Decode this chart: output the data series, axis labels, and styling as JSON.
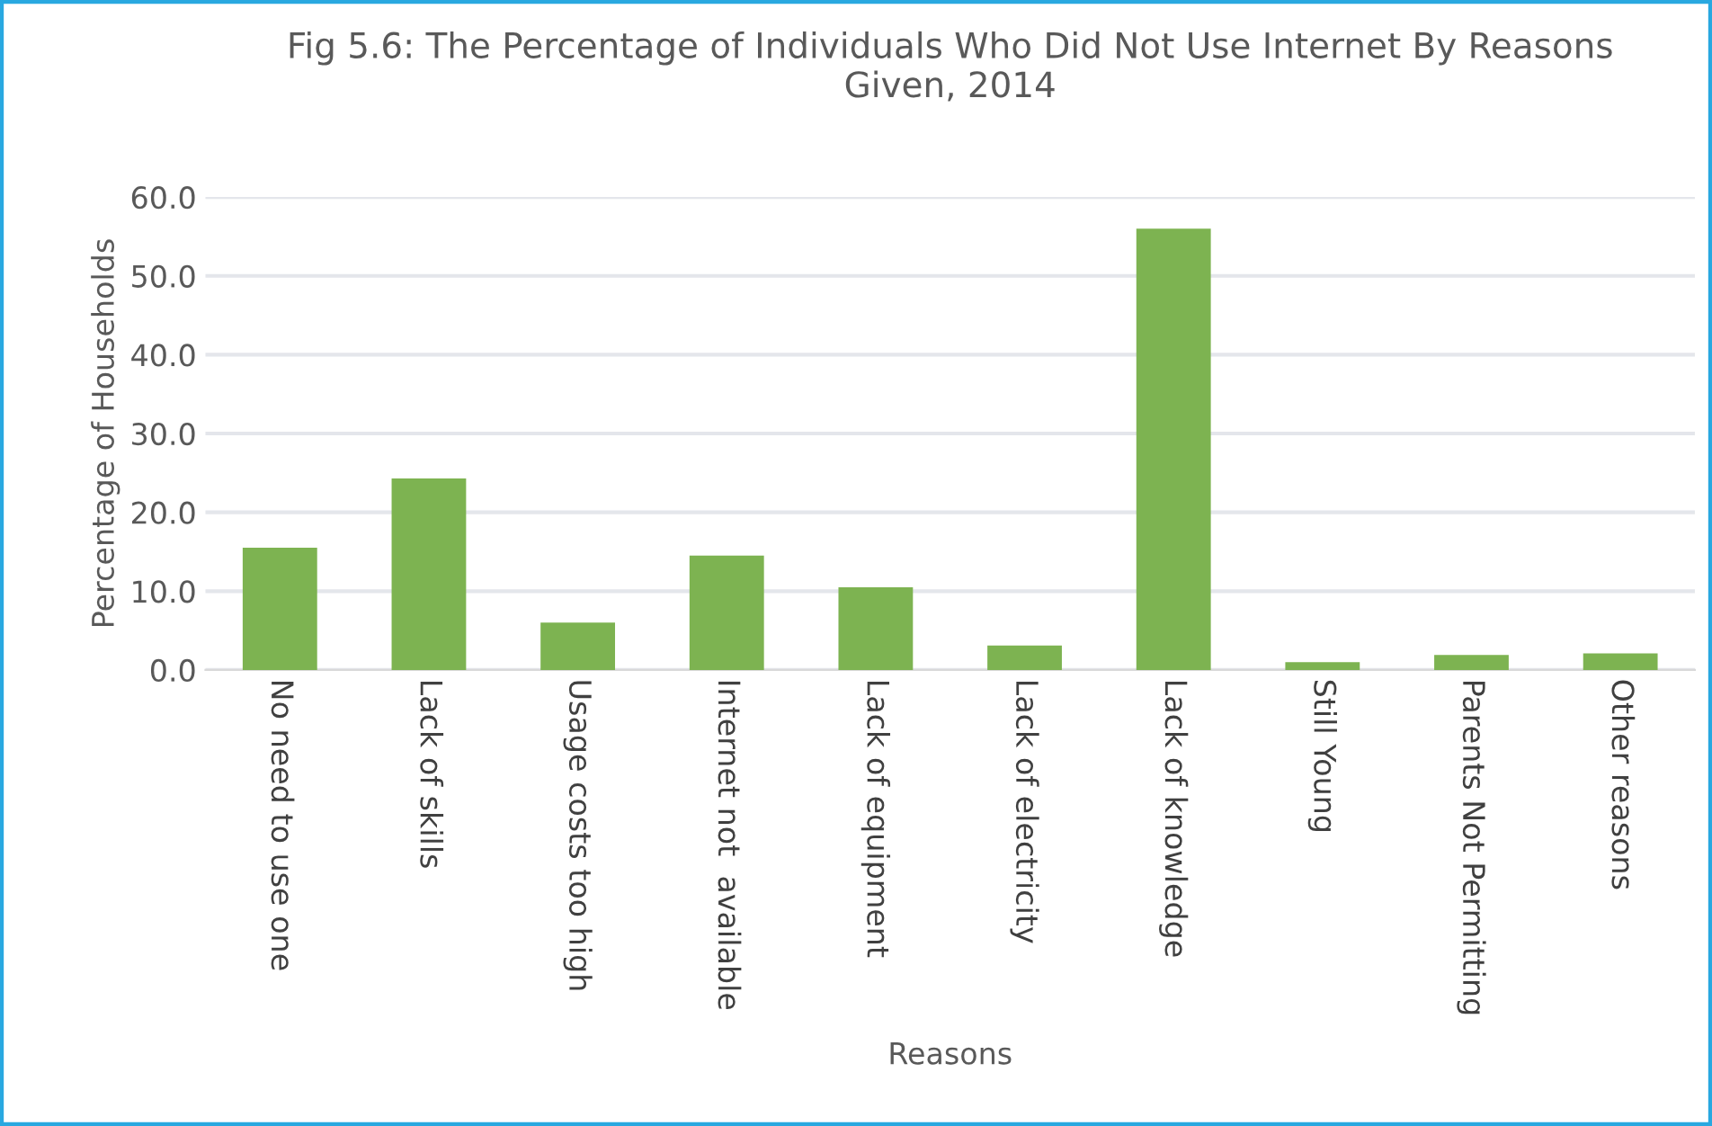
{
  "chart_data": {
    "type": "bar",
    "title": "Fig 5.6: The Percentage of Individuals Who Did Not Use Internet By Reasons\nGiven, 2014",
    "xlabel": "Reasons",
    "ylabel": "Percentage of Households",
    "categories": [
      "No need to use one",
      "Lack of skills",
      "Usage costs too high",
      "Internet not  available",
      "Lack of equipment",
      "Lack of electricity",
      "Lack of knowledge",
      "Still Young",
      "Parents Not Permitting",
      "Other reasons"
    ],
    "values": [
      15.5,
      24.3,
      6.0,
      14.5,
      10.5,
      3.1,
      56.0,
      1.0,
      1.9,
      2.1
    ],
    "color": "#7db351",
    "ylim": [
      0,
      60
    ],
    "yticks": [
      {
        "value": 0,
        "label": "0.0"
      },
      {
        "value": 10,
        "label": "10.0"
      },
      {
        "value": 20,
        "label": "20.0"
      },
      {
        "value": 30,
        "label": "30.0"
      },
      {
        "value": 40,
        "label": "40.0"
      },
      {
        "value": 50,
        "label": "50.0"
      },
      {
        "value": 60,
        "label": "60.0"
      }
    ],
    "grid": "y",
    "legend": false
  }
}
